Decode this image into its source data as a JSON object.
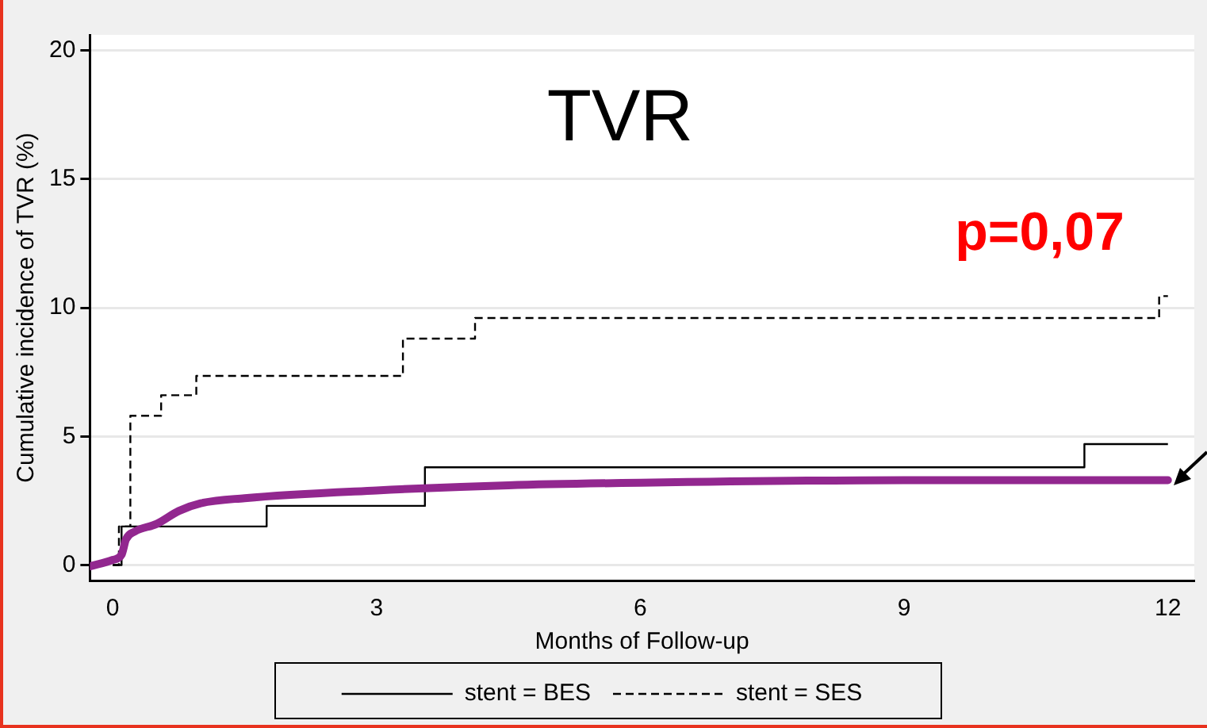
{
  "chart_data": {
    "type": "step",
    "title": "TVR",
    "xlabel": "Months of Follow-up",
    "ylabel": "Cumulative incidence of TVR (%)",
    "annotations": [
      "p=0,07"
    ],
    "xlim": [
      -0.26,
      12.3
    ],
    "xticks": [
      0,
      3,
      6,
      9,
      12
    ],
    "ylim": [
      -0.6,
      20.6
    ],
    "yticks": [
      0,
      5,
      10,
      15,
      20
    ],
    "grid": "y",
    "legend": "bottom",
    "series": [
      {
        "name": "stent = BES",
        "color": "#000000",
        "line_style": "solid",
        "x": [
          0,
          0.1,
          1.75,
          3.55,
          11.05,
          12
        ],
        "values": [
          0,
          1.5,
          2.3,
          3.8,
          4.7,
          4.7
        ]
      },
      {
        "name": "stent = SES",
        "color": "#000000",
        "line_style": "dashed",
        "x": [
          0,
          0.07,
          0.2,
          0.55,
          0.95,
          3.3,
          4.12,
          11.9,
          12
        ],
        "values": [
          0,
          1.5,
          5.8,
          6.6,
          7.35,
          8.8,
          9.6,
          10.45,
          10.45
        ]
      },
      {
        "type": "line",
        "color": "#92278f",
        "line_style": "solid",
        "x": [
          -0.26,
          0,
          0.1,
          0.15,
          0.25,
          0.5,
          0.75,
          1,
          1.5,
          3,
          4.5,
          6,
          9,
          12
        ],
        "values": [
          -0.05,
          0.2,
          0.4,
          1,
          1.3,
          1.6,
          2.1,
          2.4,
          2.6,
          2.9,
          3.1,
          3.2,
          3.3,
          3.3
        ]
      }
    ]
  }
}
